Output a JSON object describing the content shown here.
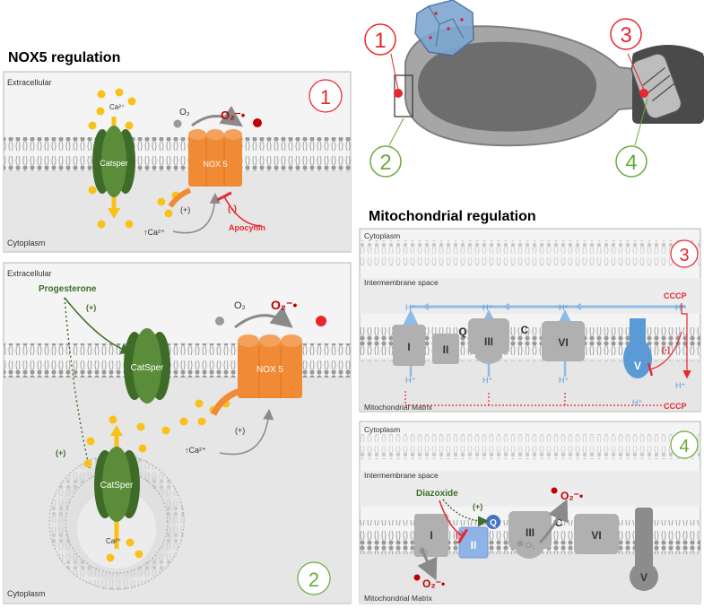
{
  "titles": {
    "nox5": "NOX5 regulation",
    "mito": "Mitochondrial regulation"
  },
  "badges": {
    "b1": "1",
    "b2": "2",
    "b3": "3",
    "b4": "4"
  },
  "panel1": {
    "extracellular": "Extracellular",
    "cytoplasm": "Cytoplasm",
    "ca_top": "Ca²⁺",
    "catsper": "Catsper",
    "o2": "O₂",
    "superoxide": "O₂⁻•",
    "nox5": "NOX 5",
    "plus": "(+)",
    "ca_up": "↑Ca²⁺",
    "minus": "(-)",
    "apocynin": "Apocynin"
  },
  "panel2": {
    "extracellular": "Extracellular",
    "progesterone": "Progesterone",
    "plus_top": "(+)",
    "plus_left": "(+)",
    "catsper_top": "CatSper",
    "catsper_ves": "CatSper",
    "o2": "O₂",
    "superoxide": "O₂⁻•",
    "nox5": "NOX 5",
    "ca_up": "↑Ca²⁺",
    "plus_right": "(+)",
    "ca_bottom": "Ca²⁺",
    "cytoplasm": "Cytoplasm"
  },
  "panel3": {
    "cytoplasm": "Cytoplasm",
    "ims": "Intermembrane space",
    "matrix": "Mitochondrial Matrix",
    "h": "H⁺",
    "cccp": "CCCP",
    "minus": "(-)",
    "c1": "I",
    "c2": "II",
    "q": "Q",
    "c3": "III",
    "c": "C",
    "c6": "VI",
    "c5": "V"
  },
  "panel4": {
    "cytoplasm": "Cytoplasm",
    "ims": "Intermembrane space",
    "matrix": "Mitochondrial Matrix",
    "diazoxide": "Diazoxide",
    "plus": "(+)",
    "minus": "(-)",
    "o2": "O₂",
    "superoxide": "O₂⁻•",
    "c1": "I",
    "c2": "II",
    "q": "Q",
    "c3": "III",
    "c": "C",
    "c6": "VI",
    "c5": "V"
  },
  "colors": {
    "red": "#e8262d",
    "green": "#6aab3c",
    "dark_green": "#3e6e2a",
    "orange": "#f08a35",
    "yellow": "#f9c21a",
    "blue": "#6fa8dc",
    "panel_bg": "#ececec"
  }
}
